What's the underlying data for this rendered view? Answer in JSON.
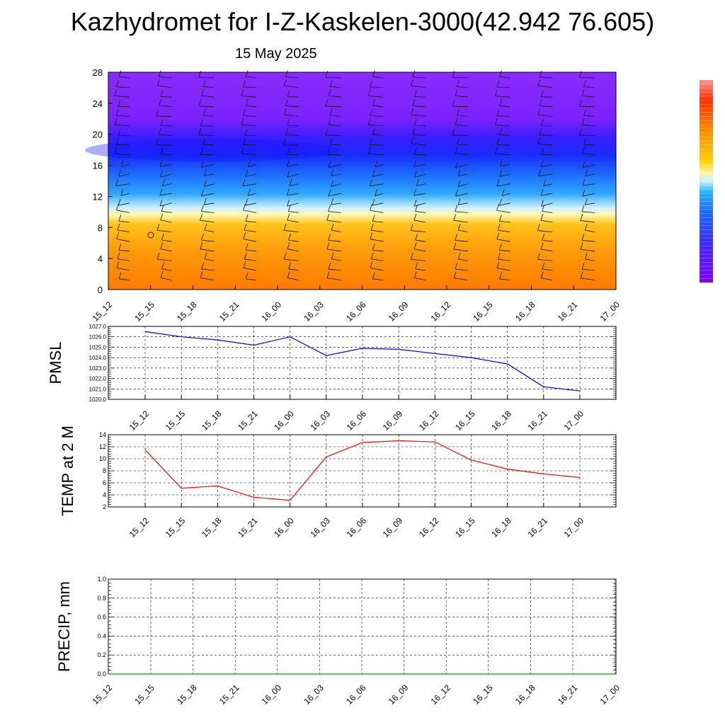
{
  "page": {
    "title": "Kazhydromet for I-Z-Kaskelen-3000(42.942 76.605)",
    "subtitle": "15 May 2025"
  },
  "chart_data": [
    {
      "type": "heatmap",
      "title": "",
      "xlabel": "",
      "ylabel": "",
      "x_tick_labels": [
        "15_12",
        "15_15",
        "15_18",
        "15_21",
        "16_00",
        "16_03",
        "16_06",
        "16_09",
        "16_12",
        "16_15",
        "16_18",
        "16_21",
        "17_00"
      ],
      "y_ticks": [
        0,
        4,
        8,
        12,
        16,
        20,
        24,
        28
      ],
      "ylim": [
        0,
        28
      ],
      "overlay": "wind barbs",
      "colorbar": [
        "#8000ff",
        "#3b2bff",
        "#1a6bff",
        "#29b5ff",
        "#c8f0ff",
        "#fff5a0",
        "#ffd000",
        "#ff8a00",
        "#ff3000",
        "#e00000"
      ]
    },
    {
      "type": "line",
      "ylabel": "PMSL",
      "x_tick_labels": [
        "15_12",
        "15_15",
        "15_18",
        "15_21",
        "16_00",
        "16_03",
        "16_06",
        "16_09",
        "16_12",
        "16_15",
        "16_18",
        "16_21",
        "17_00"
      ],
      "y_ticks": [
        "1020.0",
        "1021.0",
        "1022.0",
        "1023.0",
        "1024.0",
        "1025.0",
        "1026.0",
        "1027.0"
      ],
      "ylim": [
        1020,
        1027
      ],
      "grid": true,
      "series": [
        {
          "color": "#0000ff",
          "values": [
            1026.5,
            1026.0,
            1025.7,
            1025.2,
            1026.0,
            1024.2,
            1024.9,
            1024.8,
            1024.4,
            1024.0,
            1023.4,
            1021.2,
            1020.8
          ]
        }
      ]
    },
    {
      "type": "line",
      "ylabel": "TEMP at 2 M",
      "x_tick_labels": [
        "15_12",
        "15_15",
        "15_18",
        "15_21",
        "16_00",
        "16_03",
        "16_06",
        "16_09",
        "16_12",
        "16_15",
        "16_18",
        "16_21",
        "17_00"
      ],
      "y_ticks": [
        "2",
        "4",
        "6",
        "8",
        "10",
        "12",
        "14"
      ],
      "ylim": [
        2,
        14
      ],
      "grid": true,
      "series": [
        {
          "color": "#ff0000",
          "values": [
            11.5,
            5.1,
            5.5,
            3.6,
            3.1,
            10.3,
            12.7,
            13.0,
            12.8,
            9.8,
            8.3,
            7.5,
            6.9
          ]
        }
      ]
    },
    {
      "type": "line",
      "ylabel": "PRECIP, mm",
      "x_tick_labels": [
        "15_12",
        "15_15",
        "15_18",
        "15_21",
        "16_00",
        "16_03",
        "16_06",
        "16_09",
        "16_12",
        "16_15",
        "16_18",
        "16_21",
        "17_00"
      ],
      "y_ticks": [
        "0.0",
        "0.2",
        "0.4",
        "0.6",
        "0.8",
        "1.0"
      ],
      "ylim": [
        0,
        1
      ],
      "grid": true,
      "series": [
        {
          "color": "#00a000",
          "values": [
            0,
            0,
            0,
            0,
            0,
            0,
            0,
            0,
            0,
            0,
            0,
            0,
            0
          ]
        }
      ]
    }
  ]
}
